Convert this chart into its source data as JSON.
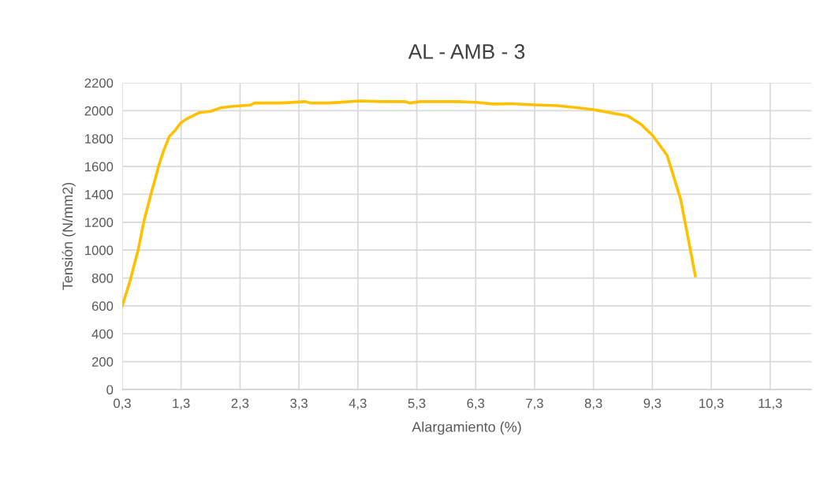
{
  "chart_data": {
    "type": "line",
    "title": "AL - AMB - 3",
    "xlabel": "Alargamiento (%)",
    "ylabel": "Tensión (N/mm2)",
    "xlim": [
      0.3,
      12.0
    ],
    "xticks": [
      {
        "value": 0.3,
        "label": "0,3"
      },
      {
        "value": 1.3,
        "label": "1,3"
      },
      {
        "value": 2.3,
        "label": "2,3"
      },
      {
        "value": 3.3,
        "label": "3,3"
      },
      {
        "value": 4.3,
        "label": "4,3"
      },
      {
        "value": 5.3,
        "label": "5,3"
      },
      {
        "value": 6.3,
        "label": "6,3"
      },
      {
        "value": 7.3,
        "label": "7,3"
      },
      {
        "value": 8.3,
        "label": "8,3"
      },
      {
        "value": 9.3,
        "label": "9,3"
      },
      {
        "value": 10.3,
        "label": "10,3"
      },
      {
        "value": 11.3,
        "label": "11,3"
      }
    ],
    "ylim": [
      0,
      2200
    ],
    "yticks": [
      0,
      200,
      400,
      600,
      800,
      1000,
      1200,
      1400,
      1600,
      1800,
      2000,
      2200
    ],
    "grid": true,
    "marker": "none",
    "line_style": "solid",
    "series": [
      {
        "color": "#ffc000",
        "x": [
          0.3,
          0.43,
          0.57,
          0.67,
          0.8,
          0.93,
          1.01,
          1.1,
          1.2,
          1.3,
          1.41,
          1.6,
          1.8,
          1.97,
          2.15,
          2.47,
          2.55,
          3.0,
          3.41,
          3.49,
          3.81,
          4.34,
          4.7,
          5.1,
          5.19,
          5.35,
          6.0,
          6.3,
          6.6,
          6.9,
          7.3,
          7.69,
          8.04,
          8.29,
          8.44,
          8.88,
          9.1,
          9.31,
          9.55,
          9.78,
          10.03
        ],
        "values": [
          600,
          775,
          1000,
          1210,
          1420,
          1620,
          1720,
          1815,
          1860,
          1915,
          1945,
          1985,
          1995,
          2020,
          2030,
          2040,
          2055,
          2055,
          2065,
          2055,
          2055,
          2070,
          2065,
          2065,
          2055,
          2065,
          2065,
          2060,
          2048,
          2050,
          2042,
          2036,
          2020,
          2008,
          1997,
          1963,
          1905,
          1820,
          1680,
          1365,
          815
        ]
      }
    ]
  }
}
